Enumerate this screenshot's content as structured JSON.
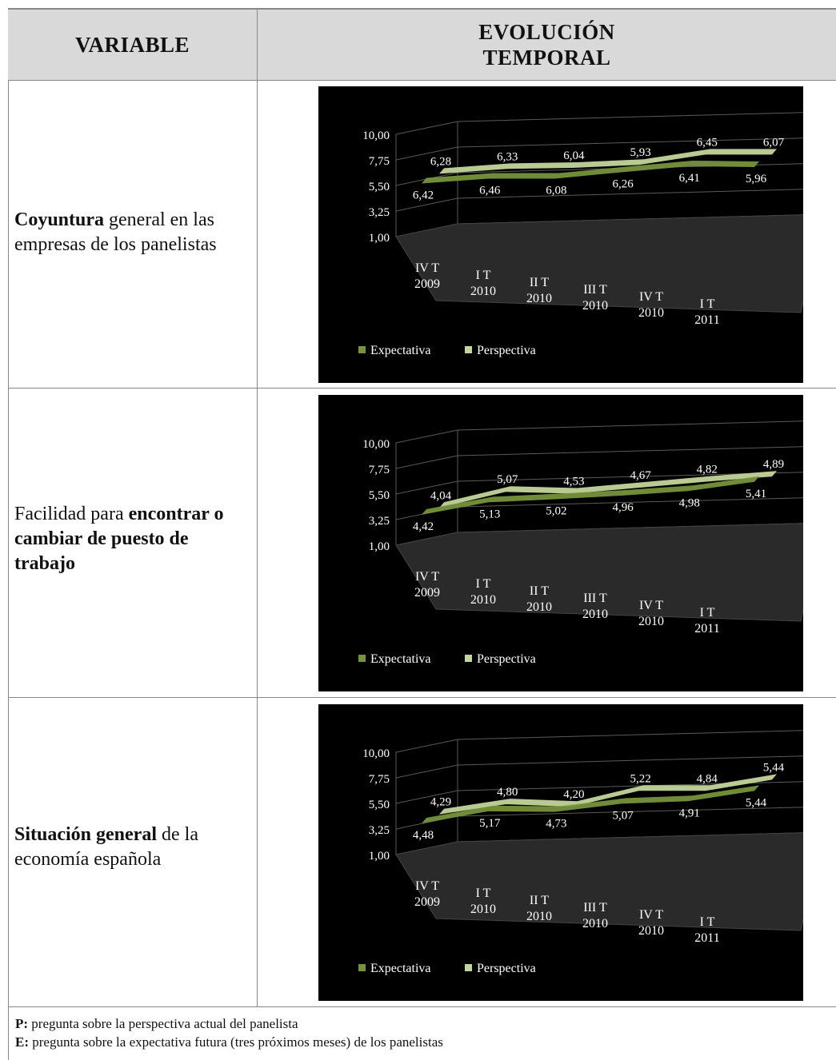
{
  "header": {
    "variable": "VARIABLE",
    "evolucion_line1": "EVOLUCIÓN",
    "evolucion_line2": "TEMPORAL"
  },
  "rows": [
    {
      "label_bold": "Coyuntura",
      "label_rest": " general en las empresas de los panelistas"
    },
    {
      "label_plain": "Facilidad para ",
      "label_bold": "encontrar o cambiar de puesto de trabajo"
    },
    {
      "label_bold": "Situación general",
      "label_rest": " de la economía española"
    }
  ],
  "footnotes": {
    "p_key": "P:",
    "p_text": " pregunta sobre la perspectiva actual del panelista",
    "e_key": "E:",
    "e_text": " pregunta sobre la expectativa futura (tres próximos meses) de los panelistas"
  },
  "colors": {
    "expectativa": "#77933c",
    "perspectiva": "#c3d69b",
    "background": "#000000",
    "grid": "#5a5a5a",
    "text": "#ffffff"
  },
  "chart_data": [
    {
      "type": "line",
      "style": "3d-line",
      "categories": [
        [
          "IV T",
          "2009"
        ],
        [
          "I T",
          "2010"
        ],
        [
          "II T",
          "2010"
        ],
        [
          "III T",
          "2010"
        ],
        [
          "IV T",
          "2010"
        ],
        [
          "I T",
          "2011"
        ]
      ],
      "yticks": [
        "10,00",
        "7,75",
        "5,50",
        "3,25",
        "1,00"
      ],
      "ylim": [
        1,
        10
      ],
      "series": [
        {
          "name": "Expectativa",
          "values": [
            6.42,
            6.46,
            6.08,
            6.26,
            6.41,
            5.96
          ],
          "labels": [
            "6,42",
            "6,46",
            "6,08",
            "6,26",
            "6,41",
            "5,96"
          ]
        },
        {
          "name": "Perspectiva",
          "values": [
            6.28,
            6.33,
            6.04,
            5.93,
            6.45,
            6.07
          ],
          "labels": [
            "6,28",
            "6,33",
            "6,04",
            "5,93",
            "6,45",
            "6,07"
          ]
        }
      ],
      "legend": "bottom-left"
    },
    {
      "type": "line",
      "style": "3d-line",
      "categories": [
        [
          "IV T",
          "2009"
        ],
        [
          "I T",
          "2010"
        ],
        [
          "II T",
          "2010"
        ],
        [
          "III T",
          "2010"
        ],
        [
          "IV T",
          "2010"
        ],
        [
          "I T",
          "2011"
        ]
      ],
      "yticks": [
        "10,00",
        "7,75",
        "5,50",
        "3,25",
        "1,00"
      ],
      "ylim": [
        1,
        10
      ],
      "series": [
        {
          "name": "Expectativa",
          "values": [
            4.42,
            5.13,
            5.02,
            4.96,
            4.98,
            5.41
          ],
          "labels": [
            "4,42",
            "5,13",
            "5,02",
            "4,96",
            "4,98",
            "5,41"
          ]
        },
        {
          "name": "Perspectiva",
          "values": [
            4.04,
            5.07,
            4.53,
            4.67,
            4.82,
            4.89
          ],
          "labels": [
            "4,04",
            "5,07",
            "4,53",
            "4,67",
            "4,82",
            "4,89"
          ]
        }
      ],
      "legend": "bottom-left"
    },
    {
      "type": "line",
      "style": "3d-line",
      "categories": [
        [
          "IV T",
          "2009"
        ],
        [
          "I T",
          "2010"
        ],
        [
          "II T",
          "2010"
        ],
        [
          "III T",
          "2010"
        ],
        [
          "IV T",
          "2010"
        ],
        [
          "I T",
          "2011"
        ]
      ],
      "yticks": [
        "10,00",
        "7,75",
        "5,50",
        "3,25",
        "1,00"
      ],
      "ylim": [
        1,
        10
      ],
      "series": [
        {
          "name": "Expectativa",
          "values": [
            4.48,
            5.17,
            4.73,
            5.07,
            4.91,
            5.44
          ],
          "labels": [
            "4,48",
            "5,17",
            "4,73",
            "5,07",
            "4,91",
            "5,44"
          ]
        },
        {
          "name": "Perspectiva",
          "values": [
            4.29,
            4.8,
            4.2,
            5.22,
            4.84,
            5.44
          ],
          "labels": [
            "4,29",
            "4,80",
            "4,20",
            "5,22",
            "4,84",
            "5,44"
          ]
        }
      ],
      "legend": "bottom-left"
    }
  ]
}
